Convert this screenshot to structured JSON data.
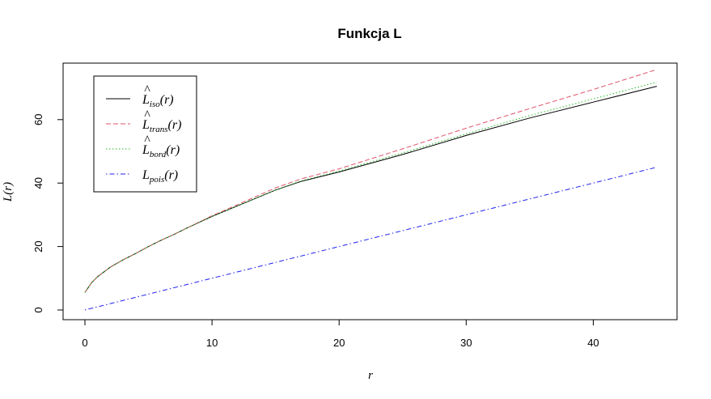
{
  "chart_data": {
    "type": "line",
    "title": "Funkcja L",
    "xlabel": "r",
    "ylabel": "L(r)",
    "xlim": [
      0,
      45
    ],
    "ylim": [
      0,
      75
    ],
    "x_ticks": [
      0,
      10,
      20,
      30,
      40
    ],
    "y_ticks": [
      0,
      20,
      40,
      60
    ],
    "grid": false,
    "legend_position": "top-left",
    "series": [
      {
        "name": "L̂iso(r)",
        "legend_base": "L",
        "legend_hat": "^",
        "legend_sub": "iso",
        "legend_suffix": "(r)",
        "color": "#000000",
        "dash": "solid",
        "x": [
          0,
          0.5,
          1,
          2,
          3,
          4,
          5,
          6,
          7,
          8,
          10,
          12,
          15,
          17,
          20,
          25,
          30,
          35,
          40,
          45
        ],
        "values": [
          5.5,
          8.5,
          10.5,
          13.5,
          15.8,
          17.8,
          20.0,
          22.0,
          23.8,
          25.8,
          29.5,
          32.8,
          37.8,
          40.5,
          43.5,
          49.0,
          55.0,
          60.5,
          65.5,
          70.5
        ]
      },
      {
        "name": "L̂trans(r)",
        "legend_base": "L",
        "legend_hat": "^",
        "legend_sub": "trans",
        "legend_suffix": "(r)",
        "color": "#df536b",
        "dash": "dashed",
        "x": [
          0,
          0.5,
          1,
          2,
          3,
          4,
          5,
          6,
          7,
          8,
          10,
          12,
          15,
          17,
          20,
          25,
          30,
          35,
          40,
          45
        ],
        "values": [
          5.5,
          8.5,
          10.5,
          13.5,
          15.8,
          17.8,
          20.0,
          22.0,
          23.8,
          25.8,
          29.7,
          33.2,
          38.5,
          41.3,
          44.5,
          50.8,
          57.3,
          63.5,
          69.5,
          75.8
        ]
      },
      {
        "name": "L̂bord(r)",
        "legend_base": "L",
        "legend_hat": "^",
        "legend_sub": "bord",
        "legend_suffix": "(r)",
        "color": "#22bb22",
        "dash": "dotted",
        "x": [
          0,
          0.5,
          1,
          2,
          3,
          4,
          5,
          6,
          7,
          8,
          10,
          12,
          15,
          17,
          20,
          25,
          30,
          35,
          40,
          45
        ],
        "values": [
          5.5,
          8.5,
          10.5,
          13.5,
          15.8,
          17.8,
          20.0,
          22.0,
          23.8,
          25.8,
          29.5,
          32.8,
          37.8,
          40.7,
          43.8,
          49.5,
          55.5,
          61.3,
          66.5,
          71.8
        ]
      },
      {
        "name": "Lpois(r)",
        "legend_base": "L",
        "legend_hat": "",
        "legend_sub": "pois",
        "legend_suffix": "(r)",
        "color": "#2222ee",
        "dash": "dotdash",
        "x": [
          0,
          45
        ],
        "values": [
          0,
          45
        ]
      }
    ]
  }
}
